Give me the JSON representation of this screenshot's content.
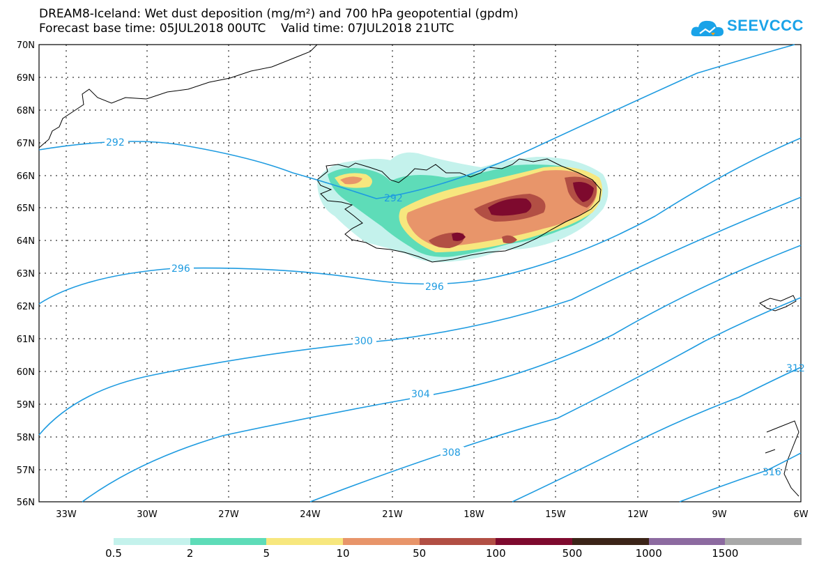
{
  "title": {
    "line1": "DREAM8-Iceland: Wet dust deposition (mg/m²) and 700 hPa geopotential (gpdm)",
    "line2": "Forecast base time: 05JUL2018 00UTC    Valid time: 07JUL2018 21UTC"
  },
  "logo": {
    "text": "SEEVCCC",
    "icon": "cloud-logo-icon",
    "color": "#1aa3e8"
  },
  "map": {
    "lat_labels": [
      "70N",
      "69N",
      "68N",
      "67N",
      "66N",
      "65N",
      "64N",
      "63N",
      "62N",
      "61N",
      "60N",
      "59N",
      "58N",
      "57N",
      "56N"
    ],
    "lon_labels": [
      "33W",
      "30W",
      "27W",
      "24W",
      "21W",
      "18W",
      "15W",
      "12W",
      "9W",
      "6W"
    ],
    "lat_range": [
      56,
      70
    ],
    "lon_range": [
      -34.3,
      -6
    ],
    "contour_color": "#1e9be0",
    "contour_labels": [
      "292",
      "292",
      "296",
      "296",
      "300",
      "304",
      "308",
      "312",
      "316"
    ],
    "dust_region": "Iceland"
  },
  "legend": {
    "labels": [
      "0.5",
      "2",
      "5",
      "10",
      "50",
      "100",
      "500",
      "1000",
      "1500"
    ],
    "colors": [
      "#c4f2ec",
      "#5edcb8",
      "#f7e77e",
      "#e8956a",
      "#b24f44",
      "#7e0a2e",
      "#3b2418",
      "#8c6aa0",
      "#a8a8a8"
    ]
  }
}
